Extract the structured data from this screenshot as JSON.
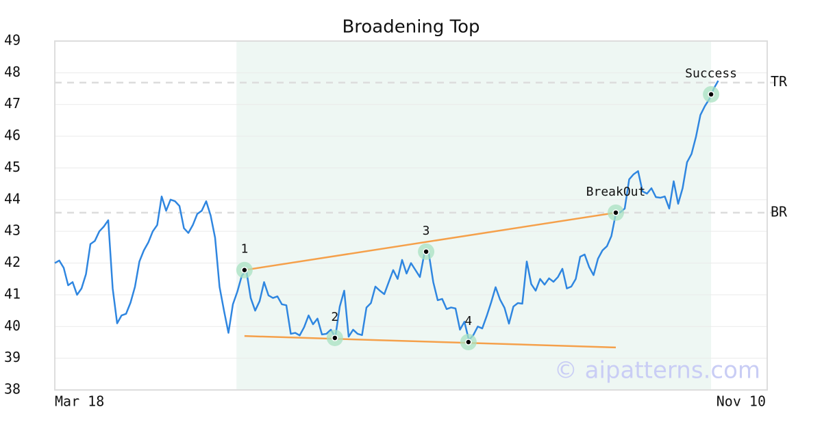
{
  "chart_data": {
    "type": "line",
    "title": "Broadening Top",
    "xlim": [
      0,
      160
    ],
    "xticks": [
      {
        "value": 0,
        "label": "Mar 18"
      },
      {
        "value": 160,
        "label": "Nov 10"
      }
    ],
    "ylim": [
      38,
      49
    ],
    "yticks": [
      38,
      39,
      40,
      41,
      42,
      43,
      44,
      45,
      46,
      47,
      48,
      49
    ],
    "grid": true,
    "color": "#2f86e0",
    "values": [
      42.0,
      42.08,
      41.85,
      41.3,
      41.4,
      41.0,
      41.2,
      41.65,
      42.6,
      42.7,
      43.0,
      43.15,
      43.35,
      41.2,
      40.1,
      40.35,
      40.4,
      40.75,
      41.25,
      42.05,
      42.4,
      42.65,
      43.0,
      43.2,
      44.1,
      43.65,
      44.0,
      43.95,
      43.8,
      43.1,
      42.95,
      43.2,
      43.55,
      43.65,
      43.95,
      43.5,
      42.8,
      41.25,
      40.5,
      39.8,
      40.7,
      41.1,
      41.6,
      41.78,
      40.9,
      40.5,
      40.8,
      41.4,
      40.98,
      40.9,
      40.95,
      40.7,
      40.67,
      39.77,
      39.8,
      39.72,
      39.98,
      40.35,
      40.07,
      40.25,
      39.75,
      39.77,
      39.9,
      39.66,
      40.63,
      41.13,
      39.68,
      39.9,
      39.77,
      39.73,
      40.6,
      40.74,
      41.26,
      41.13,
      41.02,
      41.4,
      41.78,
      41.5,
      42.1,
      41.67,
      42.0,
      41.78,
      41.56,
      42.3,
      42.3,
      41.4,
      40.83,
      40.87,
      40.55,
      40.6,
      40.57,
      39.9,
      40.15,
      39.57,
      39.73,
      40.0,
      39.94,
      40.33,
      40.76,
      41.24,
      40.85,
      40.59,
      40.09,
      40.63,
      40.74,
      40.72,
      42.05,
      41.34,
      41.13,
      41.5,
      41.32,
      41.52,
      41.41,
      41.56,
      41.82,
      41.2,
      41.26,
      41.5,
      42.2,
      42.27,
      41.88,
      41.62,
      42.14,
      42.4,
      42.53,
      42.85,
      43.56,
      43.6,
      43.72,
      44.64,
      44.8,
      44.9,
      44.26,
      44.19,
      44.36,
      44.08,
      44.06,
      44.1,
      43.72,
      44.58,
      43.87,
      44.36,
      45.18,
      45.44,
      45.98,
      46.67,
      46.95,
      47.17,
      47.5,
      47.75
    ],
    "highlight_span": [
      40.8,
      147.4
    ],
    "highlight_color": "#eef7f3",
    "levels": [
      {
        "label": "TR",
        "value": 47.69
      },
      {
        "label": "BR",
        "value": 43.59
      }
    ],
    "trendlines": [
      {
        "color": "#f5a04a",
        "x": [
          42.6,
          126
        ],
        "values": [
          41.78,
          43.59
        ]
      },
      {
        "color": "#f5a04a",
        "x": [
          42.6,
          126
        ],
        "values": [
          39.7,
          39.34
        ]
      }
    ],
    "markers": [
      {
        "label": "1",
        "x": 42.6,
        "value": 41.78
      },
      {
        "label": "2",
        "x": 62.9,
        "value": 39.64
      },
      {
        "label": "3",
        "x": 83.4,
        "value": 42.36
      },
      {
        "label": "4",
        "x": 92.9,
        "value": 39.51
      },
      {
        "label": "BreakOut",
        "x": 126,
        "value": 43.59
      },
      {
        "label": "Success",
        "x": 147.4,
        "value": 47.32
      }
    ],
    "watermark": "© aipatterns.com"
  }
}
